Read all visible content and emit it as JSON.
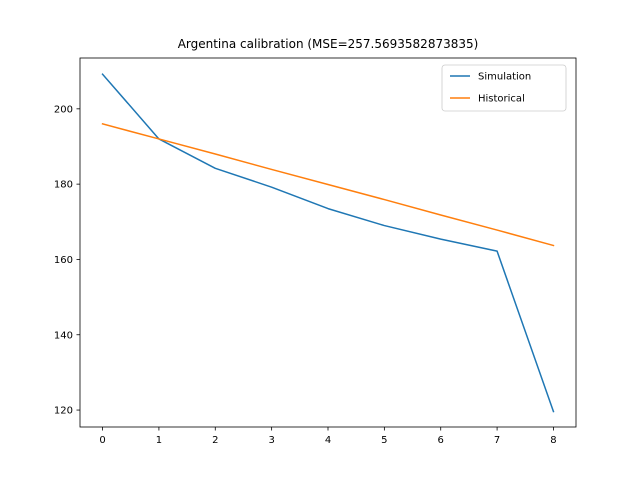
{
  "chart_data": {
    "type": "line",
    "title": "Argentina calibration (MSE=257.5693582873835)",
    "xlabel": "",
    "ylabel": "",
    "x": [
      0,
      1,
      2,
      3,
      4,
      5,
      6,
      7,
      8
    ],
    "xlim": [
      -0.4,
      8.4
    ],
    "ylim": [
      115.5,
      213.5
    ],
    "xticks": [
      0,
      1,
      2,
      3,
      4,
      5,
      6,
      7,
      8
    ],
    "yticks": [
      120,
      140,
      160,
      180,
      200
    ],
    "grid": false,
    "legend_position": "top-right",
    "series": [
      {
        "name": "Simulation",
        "color": "#1f77b4",
        "values": [
          209.2,
          192.0,
          184.2,
          179.2,
          173.5,
          169.0,
          165.4,
          162.2,
          119.6
        ]
      },
      {
        "name": "Historical",
        "color": "#ff7f0e",
        "values": [
          196.0,
          192.0,
          188.0,
          183.9,
          179.9,
          175.9,
          171.8,
          167.8,
          163.7
        ]
      }
    ]
  }
}
